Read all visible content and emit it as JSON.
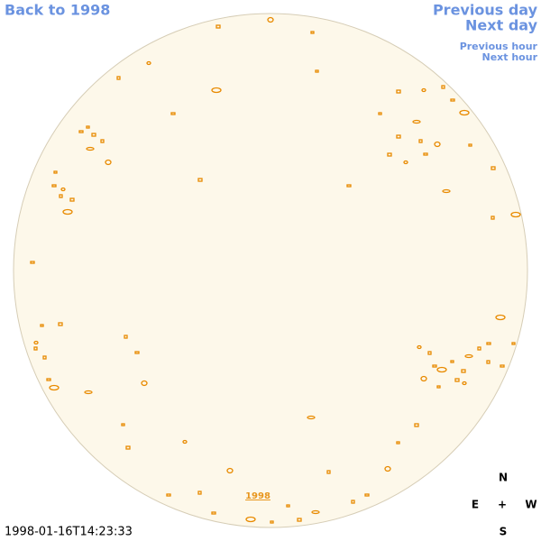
{
  "nav": {
    "back": "Back to 1998",
    "previous_day": "Previous day",
    "next_day": "Next day",
    "previous_hour": "Previous hour",
    "next_hour": "Next hour"
  },
  "disk_label": "1998",
  "timestamp": "1998-01-16T14:23:33",
  "compass": {
    "north": "N",
    "east": "E",
    "center": "+",
    "west": "W",
    "south": "S"
  }
}
